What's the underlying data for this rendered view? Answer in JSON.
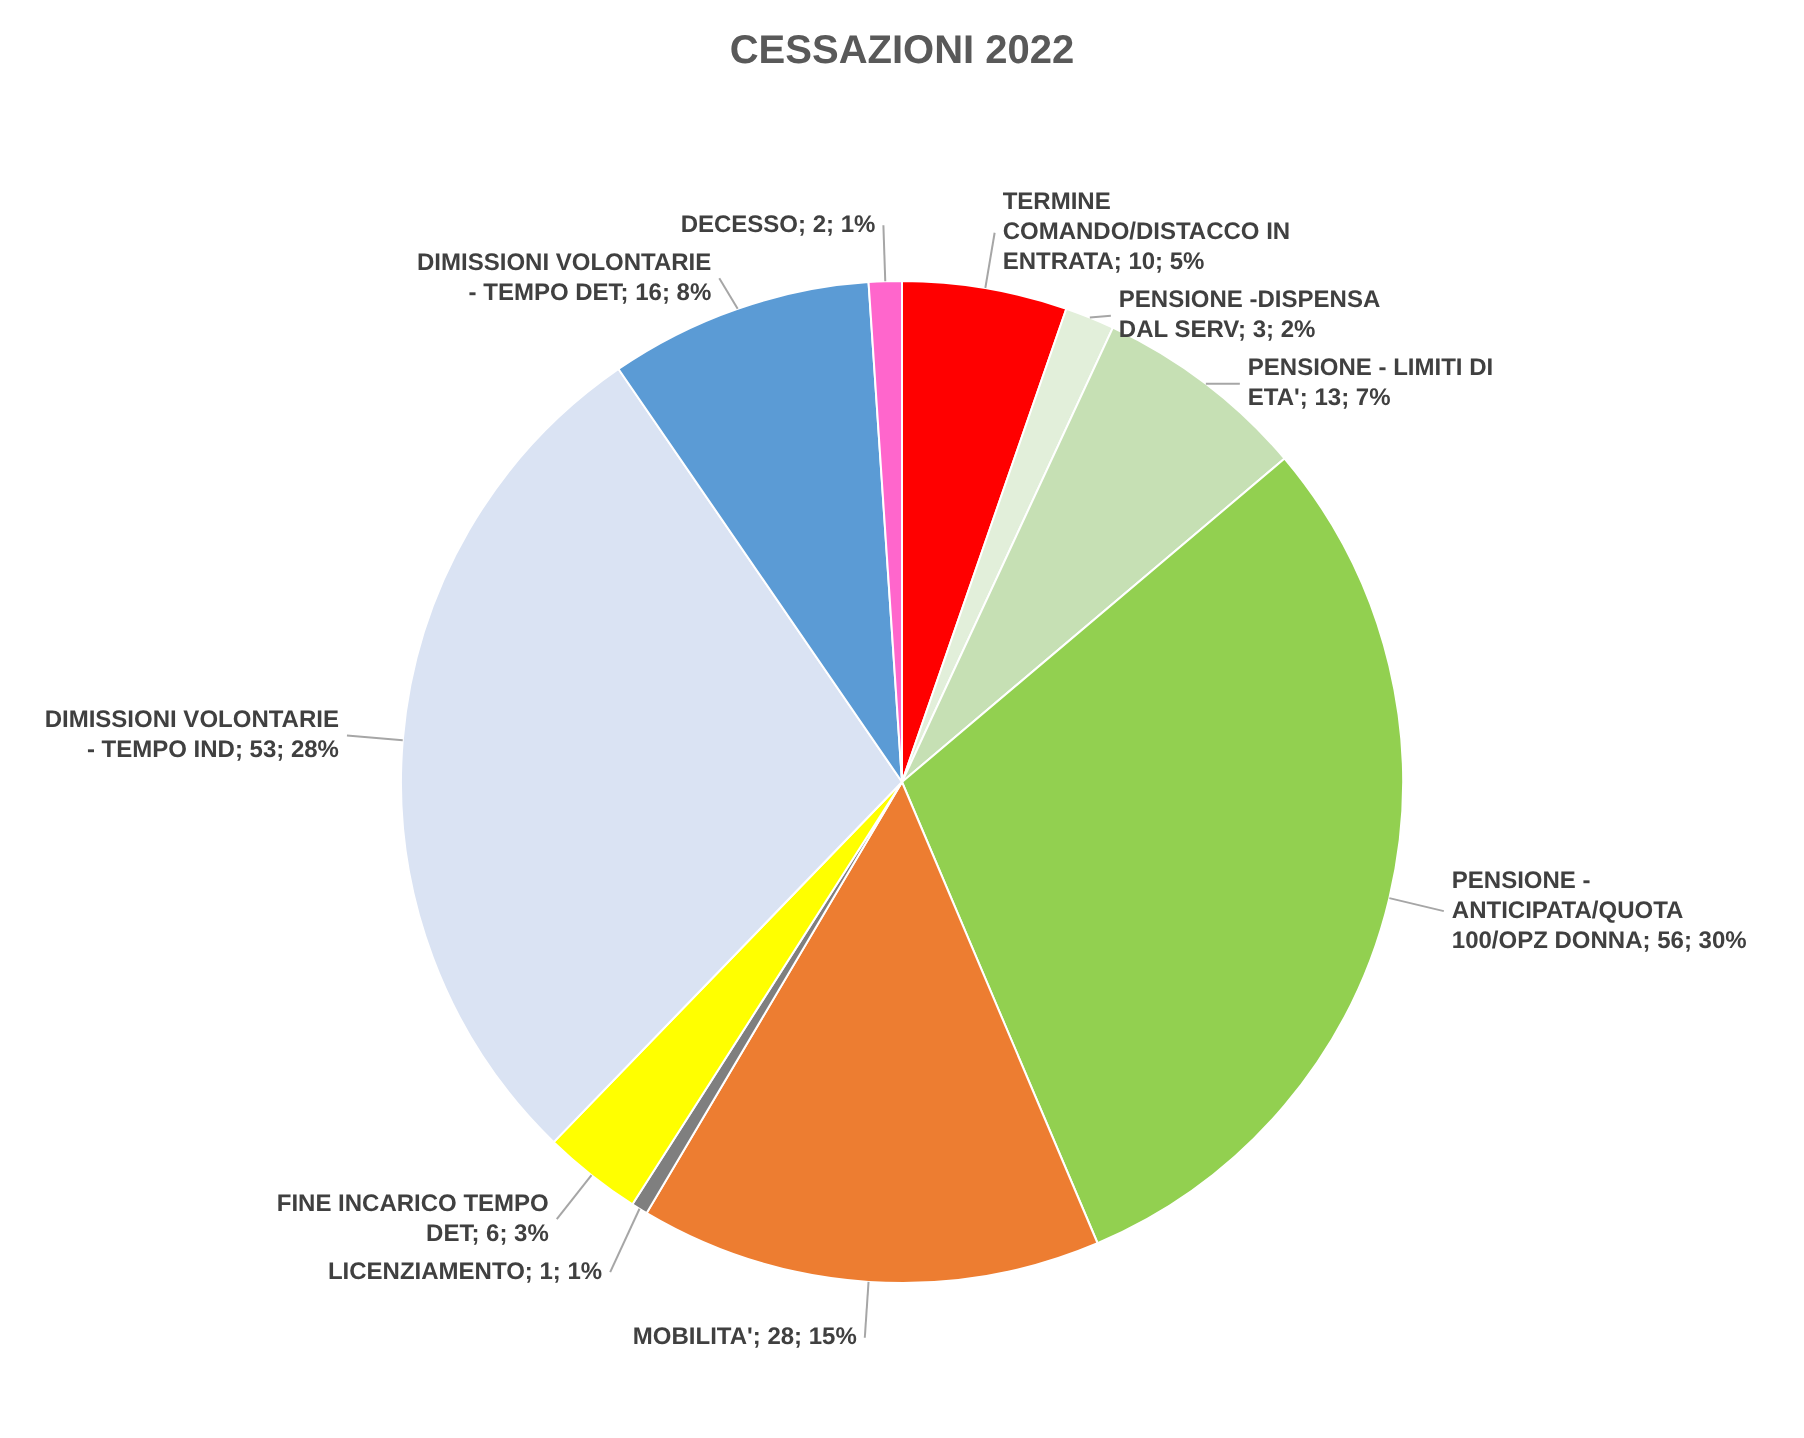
{
  "chart_data": {
    "type": "pie",
    "title": "CESSAZIONI 2022",
    "categories": [
      "TERMINE COMANDO/DISTACCO IN ENTRATA",
      "PENSIONE -DISPENSA DAL SERV",
      "PENSIONE - LIMITI DI ETA'",
      "PENSIONE - ANTICIPATA/QUOTA 100/OPZ DONNA",
      "MOBILITA'",
      "LICENZIAMENTO",
      "FINE INCARICO TEMPO DET",
      "DIMISSIONI VOLONTARIE - TEMPO IND",
      "DIMISSIONI VOLONTARIE - TEMPO DET",
      "DECESSO"
    ],
    "values": [
      10,
      3,
      13,
      56,
      28,
      1,
      6,
      53,
      16,
      2
    ],
    "value_labels": [
      "10; 5%",
      "3; 2%",
      "13; 7%",
      "56; 30%",
      "28; 15%",
      "1; 1%",
      "6; 3%",
      "53; 28%",
      "16; 8%",
      "2; 1%"
    ],
    "colors": [
      "#ff0000",
      "#e2efda",
      "#c6e0b4",
      "#92d050",
      "#ed7d31",
      "#7f7f7f",
      "#ffff00",
      "#dae3f3",
      "#5b9bd5",
      "#ff66cc"
    ],
    "legend": false
  }
}
